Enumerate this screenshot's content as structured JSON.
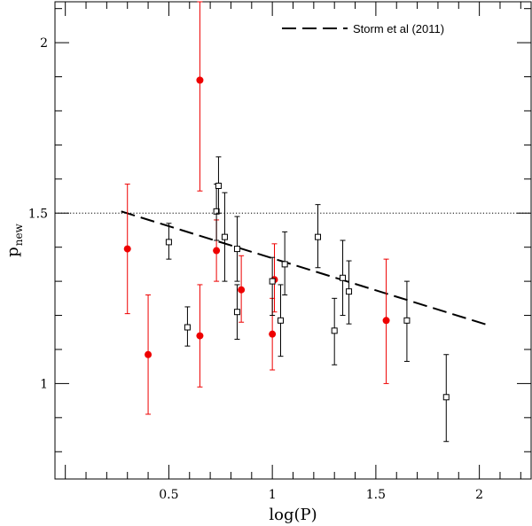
{
  "chart_data": {
    "type": "scatter",
    "xlabel": "log(P)",
    "ylabel": "p",
    "ylabel_subscript": "new",
    "xlim": [
      -0.05,
      2.25
    ],
    "ylim": [
      0.72,
      2.12
    ],
    "x_ticks": [
      {
        "value": 0.5,
        "label": "0.5"
      },
      {
        "value": 1.0,
        "label": "1"
      },
      {
        "value": 1.5,
        "label": "1.5"
      },
      {
        "value": 2.0,
        "label": "2"
      }
    ],
    "y_ticks": [
      {
        "value": 1.0,
        "label": "1"
      },
      {
        "value": 1.5,
        "label": "1.5"
      },
      {
        "value": 2.0,
        "label": "2"
      }
    ],
    "reference_line": {
      "y": 1.5,
      "style": "dotted"
    },
    "legend": {
      "label": "Storm et al (2011)",
      "position": "top-right"
    },
    "storm_relation": {
      "x": [
        0.27,
        2.05
      ],
      "y": [
        1.505,
        1.17
      ]
    },
    "series": [
      {
        "name": "red",
        "color": "#ee0000",
        "marker": "filled-circle",
        "points": [
          {
            "x": 0.3,
            "y": 1.395,
            "lo": 1.205,
            "hi": 1.585
          },
          {
            "x": 0.4,
            "y": 1.085,
            "lo": 0.91,
            "hi": 1.26
          },
          {
            "x": 0.65,
            "y": 1.89,
            "lo": 1.565,
            "hi": 2.12
          },
          {
            "x": 0.65,
            "y": 1.14,
            "lo": 0.99,
            "hi": 1.29
          },
          {
            "x": 0.73,
            "y": 1.39,
            "lo": 1.3,
            "hi": 1.48
          },
          {
            "x": 0.85,
            "y": 1.275,
            "lo": 1.18,
            "hi": 1.375
          },
          {
            "x": 1.0,
            "y": 1.145,
            "lo": 1.04,
            "hi": 1.25
          },
          {
            "x": 1.01,
            "y": 1.305,
            "lo": 1.21,
            "hi": 1.41
          },
          {
            "x": 1.55,
            "y": 1.185,
            "lo": 1.0,
            "hi": 1.365
          }
        ]
      },
      {
        "name": "black",
        "color": "#000000",
        "marker": "open-square",
        "points": [
          {
            "x": 0.5,
            "y": 1.415,
            "lo": 1.365,
            "hi": 1.47
          },
          {
            "x": 0.59,
            "y": 1.165,
            "lo": 1.11,
            "hi": 1.225
          },
          {
            "x": 0.73,
            "y": 1.505,
            "lo": 1.42,
            "hi": 1.585
          },
          {
            "x": 0.74,
            "y": 1.58,
            "lo": 1.5,
            "hi": 1.665
          },
          {
            "x": 0.77,
            "y": 1.43,
            "lo": 1.3,
            "hi": 1.56
          },
          {
            "x": 0.83,
            "y": 1.395,
            "lo": 1.3,
            "hi": 1.49
          },
          {
            "x": 0.83,
            "y": 1.21,
            "lo": 1.13,
            "hi": 1.29
          },
          {
            "x": 1.0,
            "y": 1.3,
            "lo": 1.2,
            "hi": 1.37
          },
          {
            "x": 1.04,
            "y": 1.185,
            "lo": 1.08,
            "hi": 1.29
          },
          {
            "x": 1.06,
            "y": 1.35,
            "lo": 1.26,
            "hi": 1.445
          },
          {
            "x": 1.22,
            "y": 1.43,
            "lo": 1.34,
            "hi": 1.525
          },
          {
            "x": 1.3,
            "y": 1.155,
            "lo": 1.055,
            "hi": 1.25
          },
          {
            "x": 1.34,
            "y": 1.31,
            "lo": 1.2,
            "hi": 1.42
          },
          {
            "x": 1.37,
            "y": 1.27,
            "lo": 1.175,
            "hi": 1.36
          },
          {
            "x": 1.65,
            "y": 1.185,
            "lo": 1.065,
            "hi": 1.3
          },
          {
            "x": 1.84,
            "y": 0.96,
            "lo": 0.83,
            "hi": 1.085
          }
        ]
      }
    ]
  }
}
